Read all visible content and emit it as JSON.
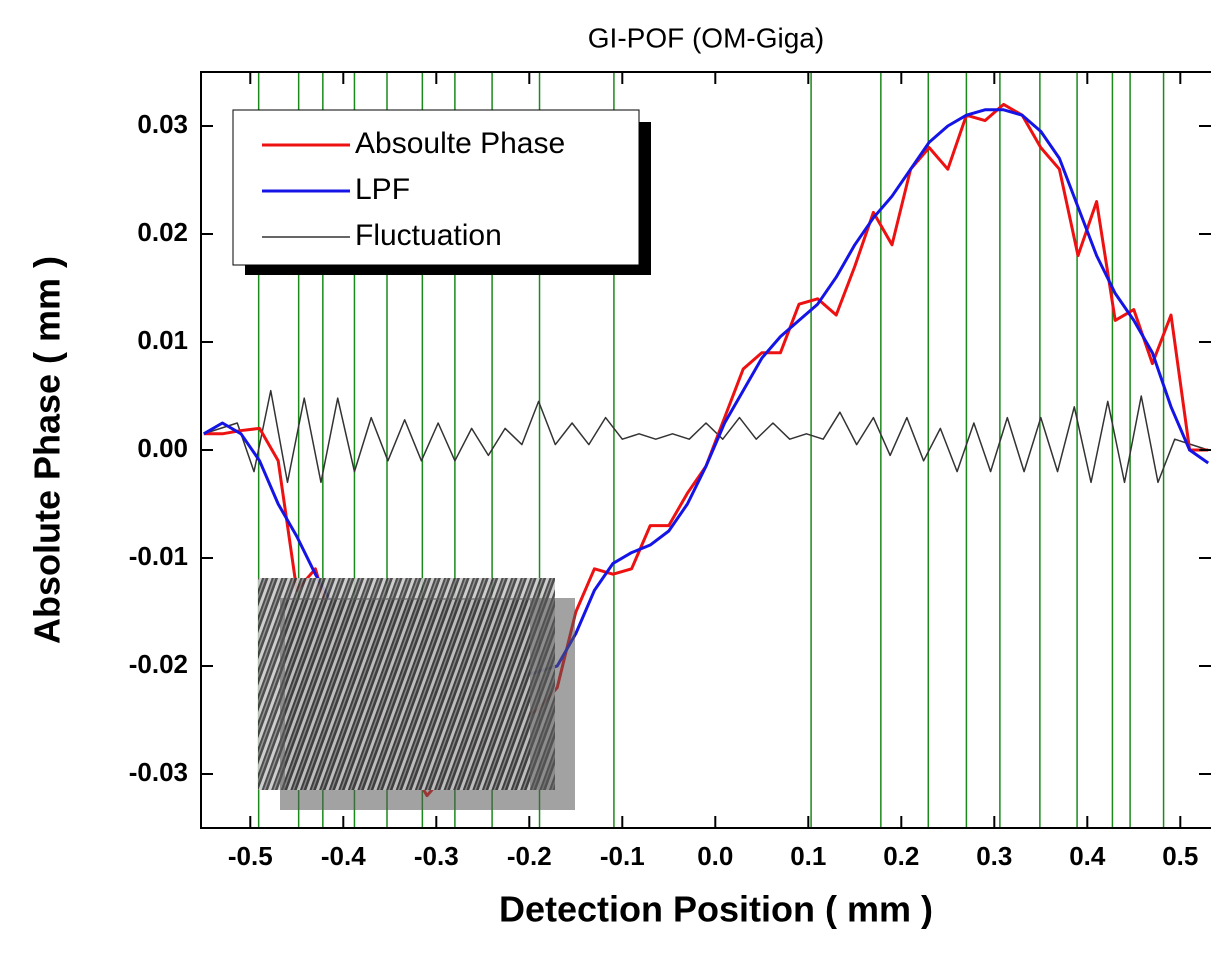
{
  "chart_data": {
    "type": "line",
    "title": "GI-POF (OM-Giga)",
    "x_label": "Detection Position ( mm )",
    "y_label": "Absolute Phase ( mm )",
    "xlim": [
      -0.553,
      0.533
    ],
    "ylim": [
      -0.035,
      0.035
    ],
    "xticks": [
      -0.5,
      -0.4,
      -0.3,
      -0.2,
      -0.1,
      {
        "value": 0,
        "label": "0.0"
      },
      0.1,
      0.2,
      0.3,
      0.4,
      0.5
    ],
    "yticks": [
      -0.03,
      -0.02,
      -0.01,
      {
        "value": 0,
        "label": "0.00"
      },
      0.01,
      0.02,
      0.03
    ],
    "legend": "upper left",
    "vlines": {
      "color": "#1a8a1a",
      "values": [
        -0.491,
        -0.448,
        -0.422,
        -0.388,
        -0.353,
        -0.315,
        -0.28,
        -0.24,
        -0.189,
        -0.109,
        0.103,
        0.178,
        0.229,
        0.27,
        0.306,
        0.349,
        0.389,
        0.427,
        0.446,
        0.482
      ]
    },
    "x": [
      -0.55,
      -0.53,
      -0.51,
      -0.49,
      -0.47,
      -0.45,
      -0.43,
      -0.41,
      -0.39,
      -0.37,
      -0.35,
      -0.33,
      -0.31,
      -0.29,
      -0.27,
      -0.25,
      -0.23,
      -0.21,
      -0.19,
      -0.17,
      -0.15,
      -0.13,
      -0.11,
      -0.09,
      -0.07,
      -0.05,
      -0.03,
      -0.01,
      0.01,
      0.03,
      0.05,
      0.07,
      0.09,
      0.11,
      0.13,
      0.15,
      0.17,
      0.19,
      0.21,
      0.23,
      0.25,
      0.27,
      0.29,
      0.31,
      0.33,
      0.35,
      0.37,
      0.39,
      0.41,
      0.43,
      0.45,
      0.47,
      0.49,
      0.51,
      0.53
    ],
    "series": [
      {
        "name": "Absoulte Phase",
        "color": "#ee1111",
        "width": 3,
        "values": [
          0.0015,
          0.0015,
          0.0018,
          0.002,
          -0.001,
          -0.013,
          -0.011,
          -0.017,
          -0.021,
          -0.023,
          -0.026,
          -0.029,
          -0.032,
          -0.03,
          -0.028,
          -0.027,
          -0.026,
          -0.025,
          -0.024,
          -0.022,
          -0.015,
          -0.011,
          -0.0115,
          -0.011,
          -0.007,
          -0.007,
          -0.004,
          -0.0015,
          0.003,
          0.0075,
          0.009,
          0.009,
          0.0135,
          0.014,
          0.0125,
          0.017,
          0.022,
          0.019,
          0.026,
          0.028,
          0.026,
          0.031,
          0.0305,
          0.032,
          0.031,
          0.028,
          0.026,
          0.018,
          0.023,
          0.012,
          0.013,
          0.008,
          0.0125,
          0.0,
          0.0
        ]
      },
      {
        "name": "LPF",
        "color": "#1414e6",
        "width": 3,
        "values": [
          0.0015,
          0.0025,
          0.0015,
          -0.001,
          -0.005,
          -0.008,
          -0.0115,
          -0.0145,
          -0.016,
          -0.018,
          -0.02,
          -0.021,
          -0.022,
          -0.023,
          -0.023,
          -0.023,
          -0.022,
          -0.021,
          -0.0205,
          -0.02,
          -0.017,
          -0.013,
          -0.0105,
          -0.0095,
          -0.0088,
          -0.0075,
          -0.005,
          -0.0015,
          0.0025,
          0.0055,
          0.0085,
          0.0105,
          0.012,
          0.0135,
          0.016,
          0.019,
          0.0215,
          0.0235,
          0.026,
          0.0285,
          0.03,
          0.031,
          0.0315,
          0.0315,
          0.031,
          0.0295,
          0.027,
          0.0225,
          0.018,
          0.0145,
          0.012,
          0.009,
          0.004,
          0.0,
          -0.0012
        ]
      },
      {
        "name": "Fluctuation",
        "color": "#333333",
        "width": 1.5,
        "x": [
          -0.55,
          -0.532,
          -0.514,
          -0.496,
          -0.478,
          -0.46,
          -0.442,
          -0.424,
          -0.406,
          -0.388,
          -0.37,
          -0.352,
          -0.334,
          -0.316,
          -0.298,
          -0.28,
          -0.262,
          -0.244,
          -0.226,
          -0.208,
          -0.19,
          -0.172,
          -0.154,
          -0.136,
          -0.118,
          -0.1,
          -0.082,
          -0.064,
          -0.046,
          -0.028,
          -0.01,
          0.008,
          0.026,
          0.044,
          0.062,
          0.08,
          0.098,
          0.116,
          0.134,
          0.152,
          0.17,
          0.188,
          0.206,
          0.224,
          0.242,
          0.26,
          0.278,
          0.296,
          0.314,
          0.332,
          0.35,
          0.368,
          0.386,
          0.404,
          0.422,
          0.44,
          0.458,
          0.476,
          0.494,
          0.512,
          0.53
        ],
        "values": [
          0.0015,
          0.002,
          0.0025,
          -0.002,
          0.0055,
          -0.003,
          0.0048,
          -0.003,
          0.0048,
          -0.002,
          0.003,
          -0.001,
          0.0028,
          -0.001,
          0.0025,
          -0.001,
          0.002,
          -0.0005,
          0.002,
          0.0005,
          0.0045,
          0.0005,
          0.0025,
          0.0005,
          0.003,
          0.001,
          0.0015,
          0.001,
          0.0015,
          0.001,
          0.0025,
          0.001,
          0.003,
          0.001,
          0.0025,
          0.001,
          0.0015,
          0.001,
          0.0035,
          0.0005,
          0.003,
          -0.0005,
          0.003,
          -0.001,
          0.002,
          -0.002,
          0.0025,
          -0.002,
          0.003,
          -0.002,
          0.003,
          -0.002,
          0.004,
          -0.003,
          0.0045,
          -0.003,
          0.005,
          -0.003,
          0.001,
          0.0005,
          0.0
        ]
      }
    ]
  }
}
